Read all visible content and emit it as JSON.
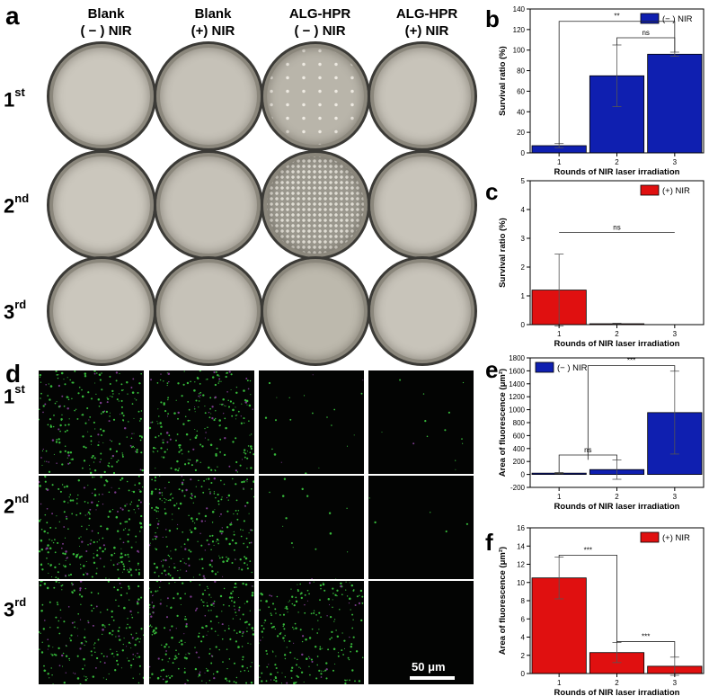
{
  "panels": {
    "a": {
      "letter": "a",
      "columns": [
        {
          "line1": "Blank",
          "line2": "( − ) NIR"
        },
        {
          "line1": "Blank",
          "line2": "(+) NIR"
        },
        {
          "line1": "ALG-HPR",
          "line2": "( − ) NIR"
        },
        {
          "line1": "ALG-HPR",
          "line2": "(+) NIR"
        }
      ],
      "rows": [
        {
          "num": "1",
          "sup": "st"
        },
        {
          "num": "2",
          "sup": "nd"
        },
        {
          "num": "3",
          "sup": "rd"
        }
      ]
    },
    "d": {
      "letter": "d",
      "rows": [
        {
          "num": "1",
          "sup": "st"
        },
        {
          "num": "2",
          "sup": "nd"
        },
        {
          "num": "3",
          "sup": "rd"
        }
      ],
      "scale_bar_label": "50 μm"
    }
  },
  "colors": {
    "blue_bar": "#0f1fb0",
    "red_bar": "#e01010",
    "plate_agar": "#cfcbc2",
    "dots_green": "#3fd040"
  },
  "chart_data": [
    {
      "id": "b",
      "letter": "b",
      "type": "bar",
      "categories": [
        "1",
        "2",
        "3"
      ],
      "values": [
        7,
        75,
        96
      ],
      "errors": [
        2,
        30,
        2
      ],
      "ylim": [
        0,
        140
      ],
      "yticks": [
        0,
        20,
        40,
        60,
        80,
        100,
        120,
        140
      ],
      "ylabel": "Survival ratio (%)",
      "xlabel": "Rounds of NIR laser irradiation",
      "legend": "(− ) NIR",
      "legend_position": "top-right",
      "color": "blue",
      "significance": [
        {
          "from": 1,
          "to": 3,
          "label": "**",
          "y": 128
        },
        {
          "from": 2,
          "to": 3,
          "label": "ns",
          "y": 112
        }
      ]
    },
    {
      "id": "c",
      "letter": "c",
      "type": "bar",
      "categories": [
        "1",
        "2",
        "3"
      ],
      "values": [
        1.2,
        0.03,
        0
      ],
      "errors": [
        1.25,
        0.02,
        0
      ],
      "ylim": [
        0,
        5
      ],
      "yticks": [
        0,
        1,
        2,
        3,
        4,
        5
      ],
      "ylabel": "Survival ratio (%)",
      "xlabel": "Rounds of NIR laser irradiation",
      "legend": "(+) NIR",
      "legend_position": "top-right",
      "color": "red",
      "significance": [
        {
          "from": 1,
          "to": 3,
          "label": "ns",
          "y": 3.2,
          "flat": true
        }
      ]
    },
    {
      "id": "e",
      "letter": "e",
      "type": "bar",
      "categories": [
        "1",
        "2",
        "3"
      ],
      "values": [
        20,
        75,
        955
      ],
      "errors": [
        10,
        150,
        640
      ],
      "ylim": [
        -200,
        1800
      ],
      "yticks": [
        -200,
        0,
        200,
        400,
        600,
        800,
        1000,
        1200,
        1400,
        1600,
        1800
      ],
      "ylabel": "Area of fluorescence (μm²)",
      "xlabel": "Rounds of NIR laser irradiation",
      "legend": "(− ) NIR",
      "legend_position": "top-left",
      "color": "blue",
      "significance": [
        {
          "from": 1,
          "to": 2,
          "label": "ns",
          "y": 300
        },
        {
          "from": 1.5,
          "to": 3,
          "label": "***",
          "y": 1680
        }
      ]
    },
    {
      "id": "f",
      "letter": "f",
      "type": "bar",
      "categories": [
        "1",
        "2",
        "3"
      ],
      "values": [
        10.5,
        2.3,
        0.8
      ],
      "errors": [
        2.3,
        1.1,
        1.0
      ],
      "ylim": [
        0,
        16
      ],
      "yticks": [
        0,
        2,
        4,
        6,
        8,
        10,
        12,
        14,
        16
      ],
      "ylabel": "Area of fluorescence (μm²)",
      "xlabel": "Rounds of NIR laser irradiation",
      "legend": "(+) NIR",
      "legend_position": "top-right",
      "color": "red",
      "significance": [
        {
          "from": 1,
          "to": 2,
          "label": "***",
          "y": 13
        },
        {
          "from": 2,
          "to": 3,
          "label": "***",
          "y": 3.5
        }
      ]
    }
  ]
}
